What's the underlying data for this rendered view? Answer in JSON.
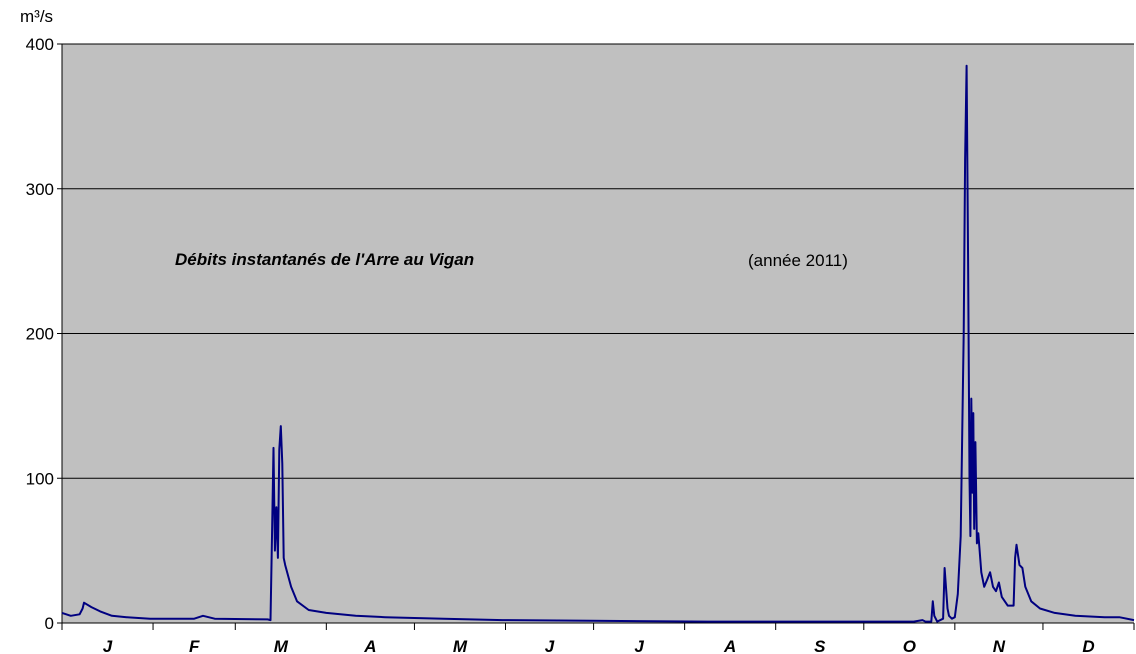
{
  "chart_data": {
    "type": "line",
    "title": "Débits instantanés de l'Arre au Vigan",
    "subtitle": "(année 2011)",
    "y_label": "m³/s",
    "categories": [
      "J",
      "F",
      "M",
      "A",
      "M",
      "J",
      "J",
      "A",
      "S",
      "O",
      "N",
      "D"
    ],
    "xlim": [
      0,
      365
    ],
    "xticks": [
      0,
      31,
      59,
      90,
      120,
      151,
      181,
      212,
      243,
      273,
      304,
      334,
      365
    ],
    "x": [
      0,
      3,
      6,
      7,
      7.5,
      10,
      13,
      17,
      22,
      30,
      45,
      48,
      52,
      70,
      71,
      71.5,
      72,
      72.5,
      73,
      73.5,
      74,
      74.5,
      75,
      75.5,
      76,
      78,
      80,
      84,
      90,
      100,
      110,
      130,
      150,
      180,
      220,
      260,
      290,
      293,
      294,
      296,
      296.5,
      297,
      298,
      300,
      300.5,
      301.5,
      302,
      303,
      304,
      305,
      306,
      307,
      307.5,
      308,
      308.5,
      309,
      309.3,
      309.6,
      310,
      310.3,
      310.6,
      311,
      311.5,
      312,
      313,
      314,
      315,
      316,
      317,
      318,
      319,
      320,
      322,
      324,
      324.5,
      325,
      326,
      327,
      328,
      330,
      333,
      338,
      345,
      355,
      360,
      365
    ],
    "values": [
      7,
      5,
      6,
      10,
      14,
      11,
      8,
      5,
      4,
      3,
      3,
      5,
      3,
      2.5,
      2,
      60,
      121,
      50,
      80,
      45,
      120,
      136,
      110,
      45,
      40,
      25,
      15,
      9,
      7,
      5,
      4,
      3,
      2,
      1.5,
      1,
      1,
      1,
      2,
      1,
      1,
      15,
      5,
      1,
      3,
      38,
      10,
      5,
      3,
      4,
      20,
      60,
      200,
      320,
      385,
      250,
      100,
      60,
      155,
      90,
      145,
      65,
      125,
      55,
      62,
      35,
      25,
      30,
      35,
      25,
      22,
      28,
      18,
      12,
      12,
      45,
      54,
      40,
      38,
      25,
      15,
      10,
      7,
      5,
      4,
      4,
      2
    ],
    "color": "#000080",
    "ylim": [
      0,
      400
    ],
    "yticks": [
      0,
      100,
      200,
      300,
      400
    ],
    "grid": true
  }
}
